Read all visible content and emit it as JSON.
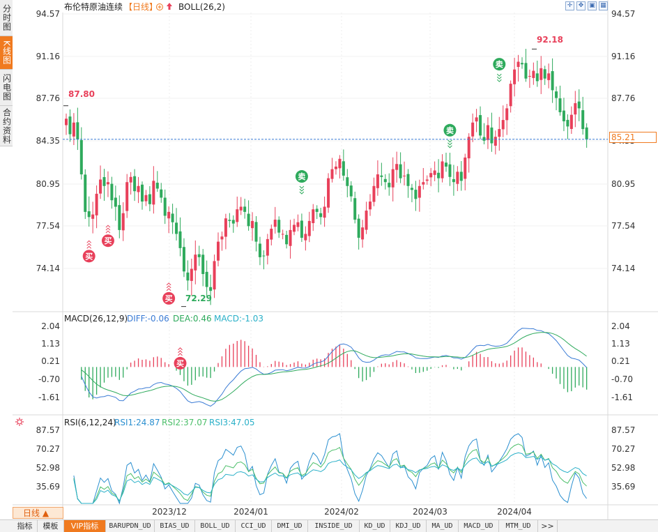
{
  "title": "布伦特原油连续",
  "period_tag": "【日线】",
  "indicator_main": "BOLL(26,2)",
  "left_tabs": [
    {
      "label": "分时图",
      "active": false
    },
    {
      "label": "K线图",
      "active": true
    },
    {
      "label": "闪电图",
      "active": false
    },
    {
      "label": "合约资料",
      "active": false
    }
  ],
  "period_button": "日线 ▲",
  "price_axis": [
    "94.57",
    "91.16",
    "87.76",
    "84.35",
    "80.95",
    "77.54",
    "74.14"
  ],
  "current_price": "85.21",
  "annotations": {
    "high_left": "87.80",
    "high_right": "92.18",
    "low": "72.29"
  },
  "signal_buy": "买",
  "signal_sell": "卖",
  "macd": {
    "title": "MACD(26,12,9)",
    "diff": "DIFF:-0.06",
    "dea": "DEA:0.46",
    "macd": "MACD:-1.03",
    "axis": [
      "2.04",
      "1.13",
      "0.21",
      "-0.70",
      "-1.61"
    ]
  },
  "rsi": {
    "title": "RSI(6,12,24)",
    "rsi1": "RSI1:24.87",
    "rsi2": "RSI2:37.07",
    "rsi3": "RSI3:47.05",
    "axis": [
      "87.57",
      "70.27",
      "52.98",
      "35.69"
    ]
  },
  "x_labels": [
    "2023/12",
    "2024/01",
    "2024/02",
    "2024/03",
    "2024/04"
  ],
  "bottom_tabs": [
    {
      "label": "指标",
      "active": false,
      "mono": false
    },
    {
      "label": "模板",
      "active": false,
      "mono": false
    },
    {
      "label": "VIP指标",
      "active": true,
      "mono": false
    },
    {
      "label": "BARUPDN_UD",
      "active": false,
      "mono": true
    },
    {
      "label": "BIAS_UD",
      "active": false,
      "mono": true
    },
    {
      "label": "BOLL_UD",
      "active": false,
      "mono": true
    },
    {
      "label": "CCI_UD",
      "active": false,
      "mono": true
    },
    {
      "label": "DMI_UD",
      "active": false,
      "mono": true
    },
    {
      "label": "INSIDE_UD",
      "active": false,
      "mono": true
    },
    {
      "label": "KD_UD",
      "active": false,
      "mono": true
    },
    {
      "label": "KDJ_UD",
      "active": false,
      "mono": true
    },
    {
      "label": "MA_UD",
      "active": false,
      "mono": true
    },
    {
      "label": "MACD_UD",
      "active": false,
      "mono": true
    },
    {
      "label": "MTM_UD",
      "active": false,
      "mono": true
    },
    {
      "label": ">>",
      "active": false,
      "mono": false
    }
  ],
  "colors": {
    "up": "#e8405a",
    "down": "#2eaa5c",
    "diff": "#3a7bd5",
    "dea": "#2eaa5c",
    "macd_label": "#2ab0c8",
    "rsi1": "#2a8fd0",
    "rsi2": "#4cbf6a",
    "rsi3": "#2ab0c8",
    "accent": "#f07a1f"
  },
  "chart_data": {
    "type": "candlestick",
    "title": "布伦特原油连续",
    "ylim": [
      72.0,
      95.0
    ],
    "closes": [
      86.8,
      85.6,
      86.5,
      85.2,
      82.5,
      79.6,
      79.2,
      79.4,
      81.0,
      82.1,
      81.6,
      81.9,
      80.5,
      80.0,
      78.2,
      79.5,
      81.9,
      82.3,
      81.2,
      81.6,
      80.4,
      80.9,
      80.2,
      82.0,
      81.4,
      80.7,
      79.3,
      79.6,
      78.8,
      77.9,
      76.8,
      75.0,
      74.3,
      75.2,
      76.3,
      76.1,
      74.8,
      73.8,
      73.5,
      75.8,
      77.3,
      77.7,
      79.1,
      78.9,
      78.7,
      79.8,
      80.0,
      79.6,
      78.5,
      78.9,
      77.3,
      76.1,
      76.2,
      77.5,
      78.3,
      79.0,
      78.0,
      77.9,
      77.1,
      78.2,
      78.6,
      78.8,
      77.6,
      77.9,
      78.9,
      79.8,
      79.6,
      79.2,
      80.0,
      82.2,
      82.9,
      83.1,
      83.7,
      82.4,
      81.6,
      80.8,
      79.0,
      77.6,
      78.4,
      79.7,
      80.4,
      81.6,
      82.5,
      82.3,
      81.9,
      81.5,
      82.9,
      83.3,
      82.2,
      82.4,
      81.6,
      81.3,
      80.6,
      81.6,
      81.9,
      82.1,
      82.6,
      82.8,
      82.2,
      83.5,
      83.1,
      82.3,
      81.9,
      82.7,
      82.0,
      83.8,
      85.4,
      86.5,
      86.9,
      85.5,
      85.1,
      86.3,
      84.9,
      85.4,
      86.0,
      86.7,
      87.6,
      89.5,
      90.6,
      91.2,
      91.0,
      89.9,
      90.1,
      90.5,
      89.7,
      90.7,
      89.9,
      90.3,
      89.0,
      88.4,
      87.3,
      86.6,
      86.2,
      87.1,
      88.0,
      87.6,
      86.0,
      85.2
    ],
    "annotations": [
      {
        "label": "87.80",
        "value": 87.8
      },
      {
        "label": "92.18",
        "value": 92.18
      },
      {
        "label": "72.29",
        "value": 72.29
      }
    ],
    "current": 85.21,
    "x_labels": [
      "2023/12",
      "2024/01",
      "2024/02",
      "2024/03",
      "2024/04"
    ],
    "macd_ylim": [
      -2.3,
      2.4
    ],
    "rsi_ylim": [
      22,
      92
    ]
  }
}
